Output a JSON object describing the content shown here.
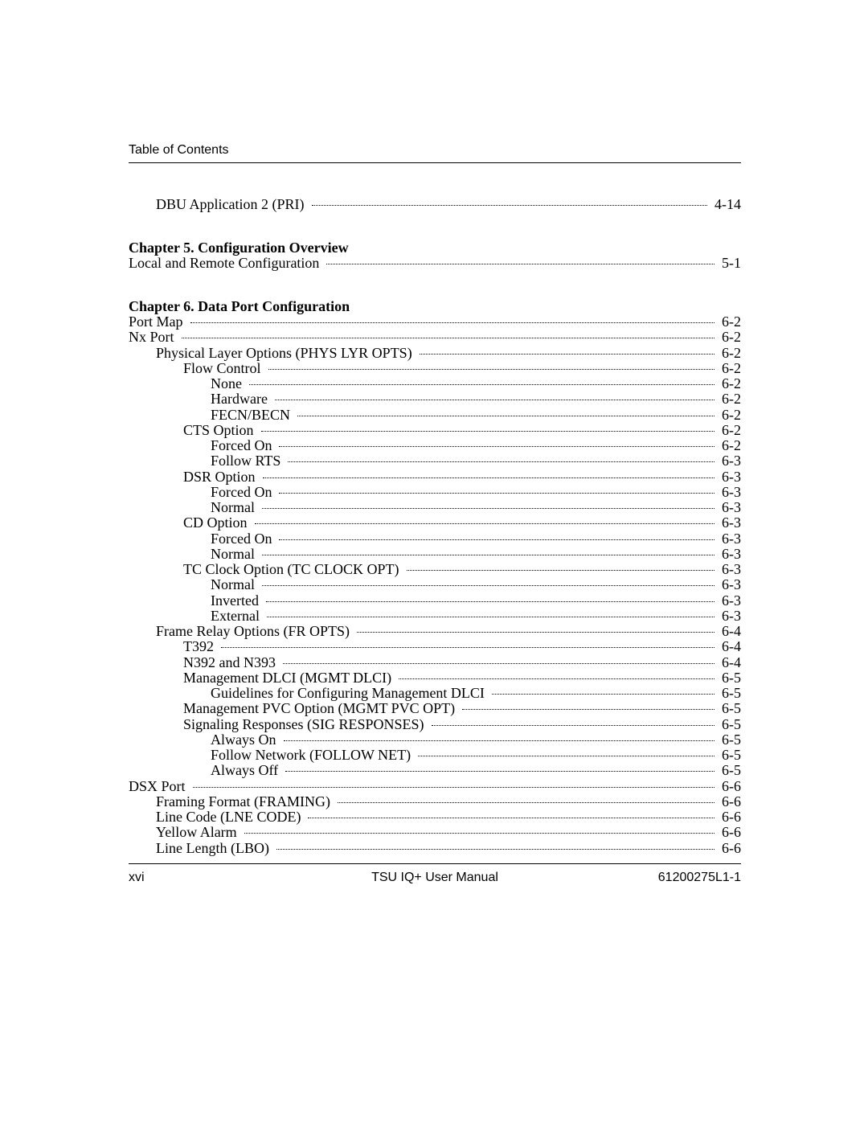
{
  "header": {
    "label": "Table of Contents"
  },
  "toc": [
    {
      "type": "entry",
      "label": "DBU Application 2 (PRI)",
      "page": "4-14",
      "indent": 1,
      "first": true
    },
    {
      "type": "chapter",
      "label": "Chapter 5.  Configuration Overview"
    },
    {
      "type": "entry",
      "label": "Local and Remote Configuration ",
      "page": "5-1",
      "indent": 0
    },
    {
      "type": "chapter",
      "label": "Chapter 6.  Data Port Configuration"
    },
    {
      "type": "entry",
      "label": "Port Map ",
      "page": " 6-2",
      "indent": 0
    },
    {
      "type": "entry",
      "label": "Nx Port ",
      "page": " 6-2",
      "indent": 0
    },
    {
      "type": "entry",
      "label": "Physical Layer Options (PHYS LYR OPTS) ",
      "page": " 6-2",
      "indent": 1
    },
    {
      "type": "entry",
      "label": "Flow Control ",
      "page": " 6-2",
      "indent": 2
    },
    {
      "type": "entry",
      "label": "None ",
      "page": " 6-2",
      "indent": 3
    },
    {
      "type": "entry",
      "label": "Hardware ",
      "page": " 6-2",
      "indent": 3
    },
    {
      "type": "entry",
      "label": "FECN/BECN ",
      "page": " 6-2",
      "indent": 3
    },
    {
      "type": "entry",
      "label": "CTS Option ",
      "page": " 6-2",
      "indent": 2
    },
    {
      "type": "entry",
      "label": "Forced On ",
      "page": " 6-2",
      "indent": 3
    },
    {
      "type": "entry",
      "label": "Follow RTS ",
      "page": " 6-3",
      "indent": 3
    },
    {
      "type": "entry",
      "label": "DSR Option ",
      "page": " 6-3",
      "indent": 2
    },
    {
      "type": "entry",
      "label": "Forced On ",
      "page": " 6-3",
      "indent": 3
    },
    {
      "type": "entry",
      "label": "Normal ",
      "page": " 6-3",
      "indent": 3
    },
    {
      "type": "entry",
      "label": "CD Option ",
      "page": " 6-3",
      "indent": 2
    },
    {
      "type": "entry",
      "label": "Forced On ",
      "page": " 6-3",
      "indent": 3
    },
    {
      "type": "entry",
      "label": "Normal ",
      "page": " 6-3",
      "indent": 3
    },
    {
      "type": "entry",
      "label": "TC Clock Option (TC CLOCK OPT) ",
      "page": " 6-3",
      "indent": 2
    },
    {
      "type": "entry",
      "label": "Normal ",
      "page": " 6-3",
      "indent": 3
    },
    {
      "type": "entry",
      "label": "Inverted ",
      "page": " 6-3",
      "indent": 3
    },
    {
      "type": "entry",
      "label": "External ",
      "page": " 6-3",
      "indent": 3
    },
    {
      "type": "entry",
      "label": "Frame Relay Options (FR OPTS)",
      "page": " 6-4",
      "indent": 1
    },
    {
      "type": "entry",
      "label": "T392 ",
      "page": " 6-4",
      "indent": 2
    },
    {
      "type": "entry",
      "label": "N392 and N393 ",
      "page": " 6-4",
      "indent": 2
    },
    {
      "type": "entry",
      "label": "Management DLCI (MGMT DLCI) ",
      "page": " 6-5",
      "indent": 2
    },
    {
      "type": "entry",
      "label": "Guidelines for Configuring Management DLCI ",
      "page": " 6-5",
      "indent": 3
    },
    {
      "type": "entry",
      "label": "Management PVC Option (MGMT PVC OPT) ",
      "page": " 6-5",
      "indent": 2
    },
    {
      "type": "entry",
      "label": "Signaling Responses (SIG RESPONSES) ",
      "page": " 6-5",
      "indent": 2
    },
    {
      "type": "entry",
      "label": "Always On ",
      "page": " 6-5",
      "indent": 3
    },
    {
      "type": "entry",
      "label": "Follow Network (FOLLOW NET) ",
      "page": " 6-5",
      "indent": 3
    },
    {
      "type": "entry",
      "label": "Always Off ",
      "page": " 6-5",
      "indent": 3
    },
    {
      "type": "entry",
      "label": "DSX Port ",
      "page": " 6-6",
      "indent": 0
    },
    {
      "type": "entry",
      "label": "Framing Format (FRAMING)",
      "page": " 6-6",
      "indent": 1
    },
    {
      "type": "entry",
      "label": "Line Code (LNE CODE)",
      "page": " 6-6",
      "indent": 1
    },
    {
      "type": "entry",
      "label": "Yellow Alarm",
      "page": " 6-6",
      "indent": 1
    },
    {
      "type": "entry",
      "label": "Line Length (LBO)",
      "page": " 6-6",
      "indent": 1
    }
  ],
  "footer": {
    "left": "xvi",
    "center": "TSU IQ+ User Manual",
    "right": "61200275L1-1"
  }
}
